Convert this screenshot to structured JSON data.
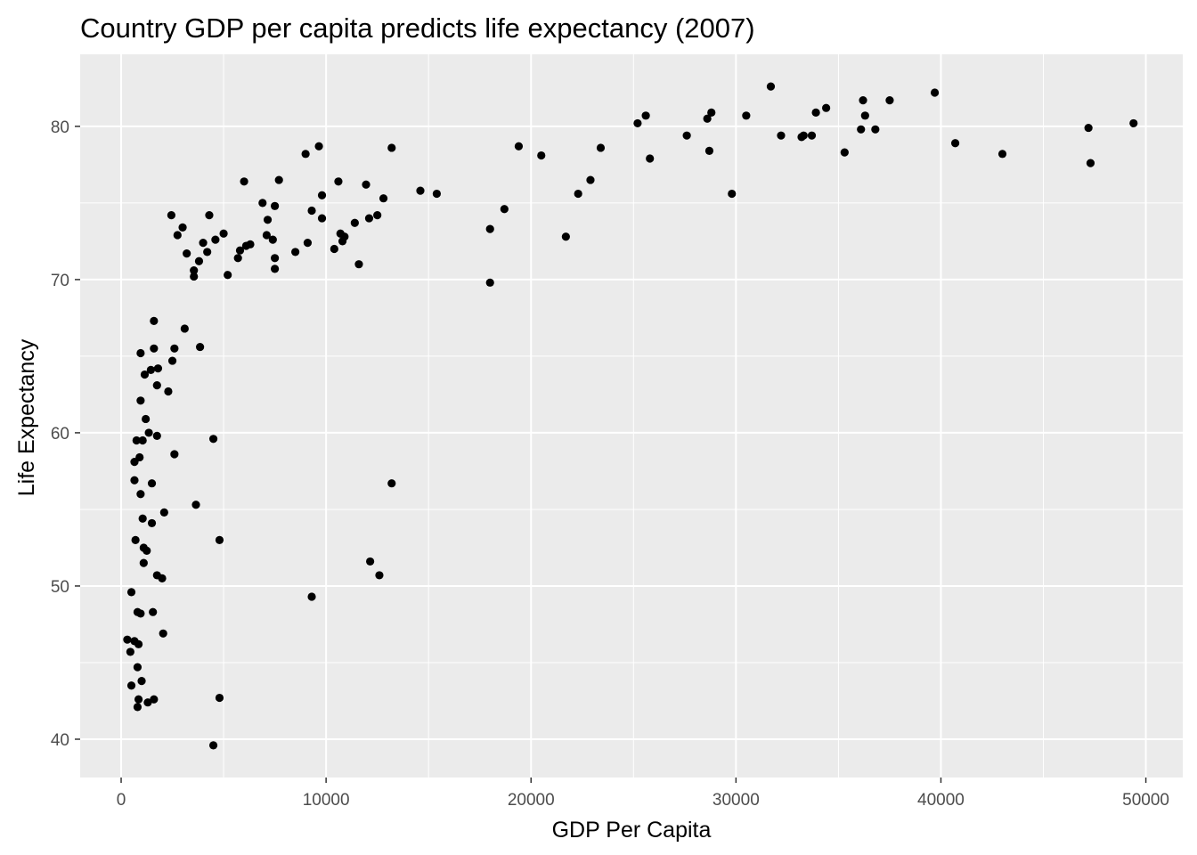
{
  "chart_data": {
    "type": "scatter",
    "title": "Country GDP per capita predicts life expectancy (2007)",
    "xlabel": "GDP Per Capita",
    "ylabel": "Life Expectancy",
    "xlim": [
      -2000,
      51800
    ],
    "ylim": [
      37.5,
      84.7
    ],
    "xticks": [
      0,
      10000,
      20000,
      30000,
      40000,
      50000
    ],
    "xtick_labels": [
      "0",
      "10000",
      "20000",
      "30000",
      "40000",
      "50000"
    ],
    "yticks": [
      40,
      50,
      60,
      70,
      80
    ],
    "ytick_labels": [
      "40",
      "50",
      "60",
      "70",
      "80"
    ],
    "grid": true,
    "panel_background": "#ebebeb",
    "point_color": "#000000",
    "points": [
      [
        300,
        46.5
      ],
      [
        450,
        45.7
      ],
      [
        500,
        43.5
      ],
      [
        500,
        49.6
      ],
      [
        650,
        46.4
      ],
      [
        700,
        53.0
      ],
      [
        650,
        56.9
      ],
      [
        650,
        58.1
      ],
      [
        750,
        59.5
      ],
      [
        800,
        48.3
      ],
      [
        800,
        44.7
      ],
      [
        800,
        42.1
      ],
      [
        850,
        42.6
      ],
      [
        850,
        46.2
      ],
      [
        900,
        58.4
      ],
      [
        950,
        48.2
      ],
      [
        950,
        56.0
      ],
      [
        950,
        62.1
      ],
      [
        950,
        65.2
      ],
      [
        1000,
        43.8
      ],
      [
        1050,
        59.5
      ],
      [
        1050,
        54.4
      ],
      [
        1100,
        51.5
      ],
      [
        1100,
        52.5
      ],
      [
        1150,
        63.8
      ],
      [
        1200,
        60.9
      ],
      [
        1250,
        52.3
      ],
      [
        1300,
        42.4
      ],
      [
        1350,
        60.0
      ],
      [
        1450,
        64.1
      ],
      [
        1500,
        56.7
      ],
      [
        1500,
        54.1
      ],
      [
        1550,
        48.3
      ],
      [
        1600,
        67.3
      ],
      [
        1600,
        65.5
      ],
      [
        1600,
        42.6
      ],
      [
        1750,
        63.1
      ],
      [
        1750,
        59.8
      ],
      [
        1750,
        50.7
      ],
      [
        1800,
        64.2
      ],
      [
        2000,
        50.5
      ],
      [
        2050,
        46.9
      ],
      [
        2100,
        54.8
      ],
      [
        2300,
        62.7
      ],
      [
        2450,
        74.2
      ],
      [
        2500,
        64.7
      ],
      [
        2600,
        65.5
      ],
      [
        2600,
        58.6
      ],
      [
        2750,
        72.9
      ],
      [
        3000,
        73.4
      ],
      [
        3100,
        66.8
      ],
      [
        3200,
        71.7
      ],
      [
        3550,
        70.2
      ],
      [
        3550,
        70.6
      ],
      [
        3650,
        55.3
      ],
      [
        3800,
        71.2
      ],
      [
        3850,
        65.6
      ],
      [
        4000,
        72.4
      ],
      [
        4200,
        71.8
      ],
      [
        4300,
        74.2
      ],
      [
        4500,
        59.6
      ],
      [
        4500,
        39.6
      ],
      [
        4600,
        72.6
      ],
      [
        4800,
        53.0
      ],
      [
        4800,
        42.7
      ],
      [
        5000,
        73.0
      ],
      [
        5200,
        70.3
      ],
      [
        5700,
        71.4
      ],
      [
        5800,
        71.9
      ],
      [
        6000,
        76.4
      ],
      [
        6100,
        72.2
      ],
      [
        6300,
        72.3
      ],
      [
        6900,
        75.0
      ],
      [
        7100,
        72.9
      ],
      [
        7150,
        73.9
      ],
      [
        7400,
        72.6
      ],
      [
        7500,
        71.4
      ],
      [
        7500,
        74.8
      ],
      [
        7500,
        70.7
      ],
      [
        7700,
        76.5
      ],
      [
        8500,
        71.8
      ],
      [
        9000,
        78.2
      ],
      [
        9100,
        72.4
      ],
      [
        9300,
        74.5
      ],
      [
        9300,
        49.3
      ],
      [
        9650,
        78.7
      ],
      [
        9800,
        74.0
      ],
      [
        9800,
        75.5
      ],
      [
        10400,
        72.0
      ],
      [
        10600,
        76.4
      ],
      [
        10700,
        73.0
      ],
      [
        10800,
        72.5
      ],
      [
        10900,
        72.8
      ],
      [
        11400,
        73.7
      ],
      [
        11600,
        71.0
      ],
      [
        11950,
        76.2
      ],
      [
        12100,
        74.0
      ],
      [
        12150,
        51.6
      ],
      [
        12500,
        74.2
      ],
      [
        12600,
        50.7
      ],
      [
        12800,
        75.3
      ],
      [
        13200,
        78.6
      ],
      [
        13200,
        56.7
      ],
      [
        14600,
        75.8
      ],
      [
        15400,
        75.6
      ],
      [
        18000,
        73.3
      ],
      [
        18000,
        69.8
      ],
      [
        18700,
        74.6
      ],
      [
        19400,
        78.7
      ],
      [
        20500,
        78.1
      ],
      [
        21700,
        72.8
      ],
      [
        22300,
        75.6
      ],
      [
        22900,
        76.5
      ],
      [
        23400,
        78.6
      ],
      [
        25200,
        80.2
      ],
      [
        25600,
        80.7
      ],
      [
        25800,
        77.9
      ],
      [
        27600,
        79.4
      ],
      [
        28600,
        80.5
      ],
      [
        28700,
        78.4
      ],
      [
        28800,
        80.9
      ],
      [
        29800,
        75.6
      ],
      [
        30500,
        80.7
      ],
      [
        31700,
        82.6
      ],
      [
        32200,
        79.4
      ],
      [
        33200,
        79.3
      ],
      [
        33300,
        79.4
      ],
      [
        33700,
        79.4
      ],
      [
        33900,
        80.9
      ],
      [
        34400,
        81.2
      ],
      [
        35300,
        78.3
      ],
      [
        36100,
        79.8
      ],
      [
        36200,
        81.7
      ],
      [
        36300,
        80.7
      ],
      [
        36800,
        79.8
      ],
      [
        37500,
        81.7
      ],
      [
        39700,
        82.2
      ],
      [
        40700,
        78.9
      ],
      [
        43000,
        78.2
      ],
      [
        47200,
        79.9
      ],
      [
        47300,
        77.6
      ],
      [
        49400,
        80.2
      ]
    ]
  }
}
